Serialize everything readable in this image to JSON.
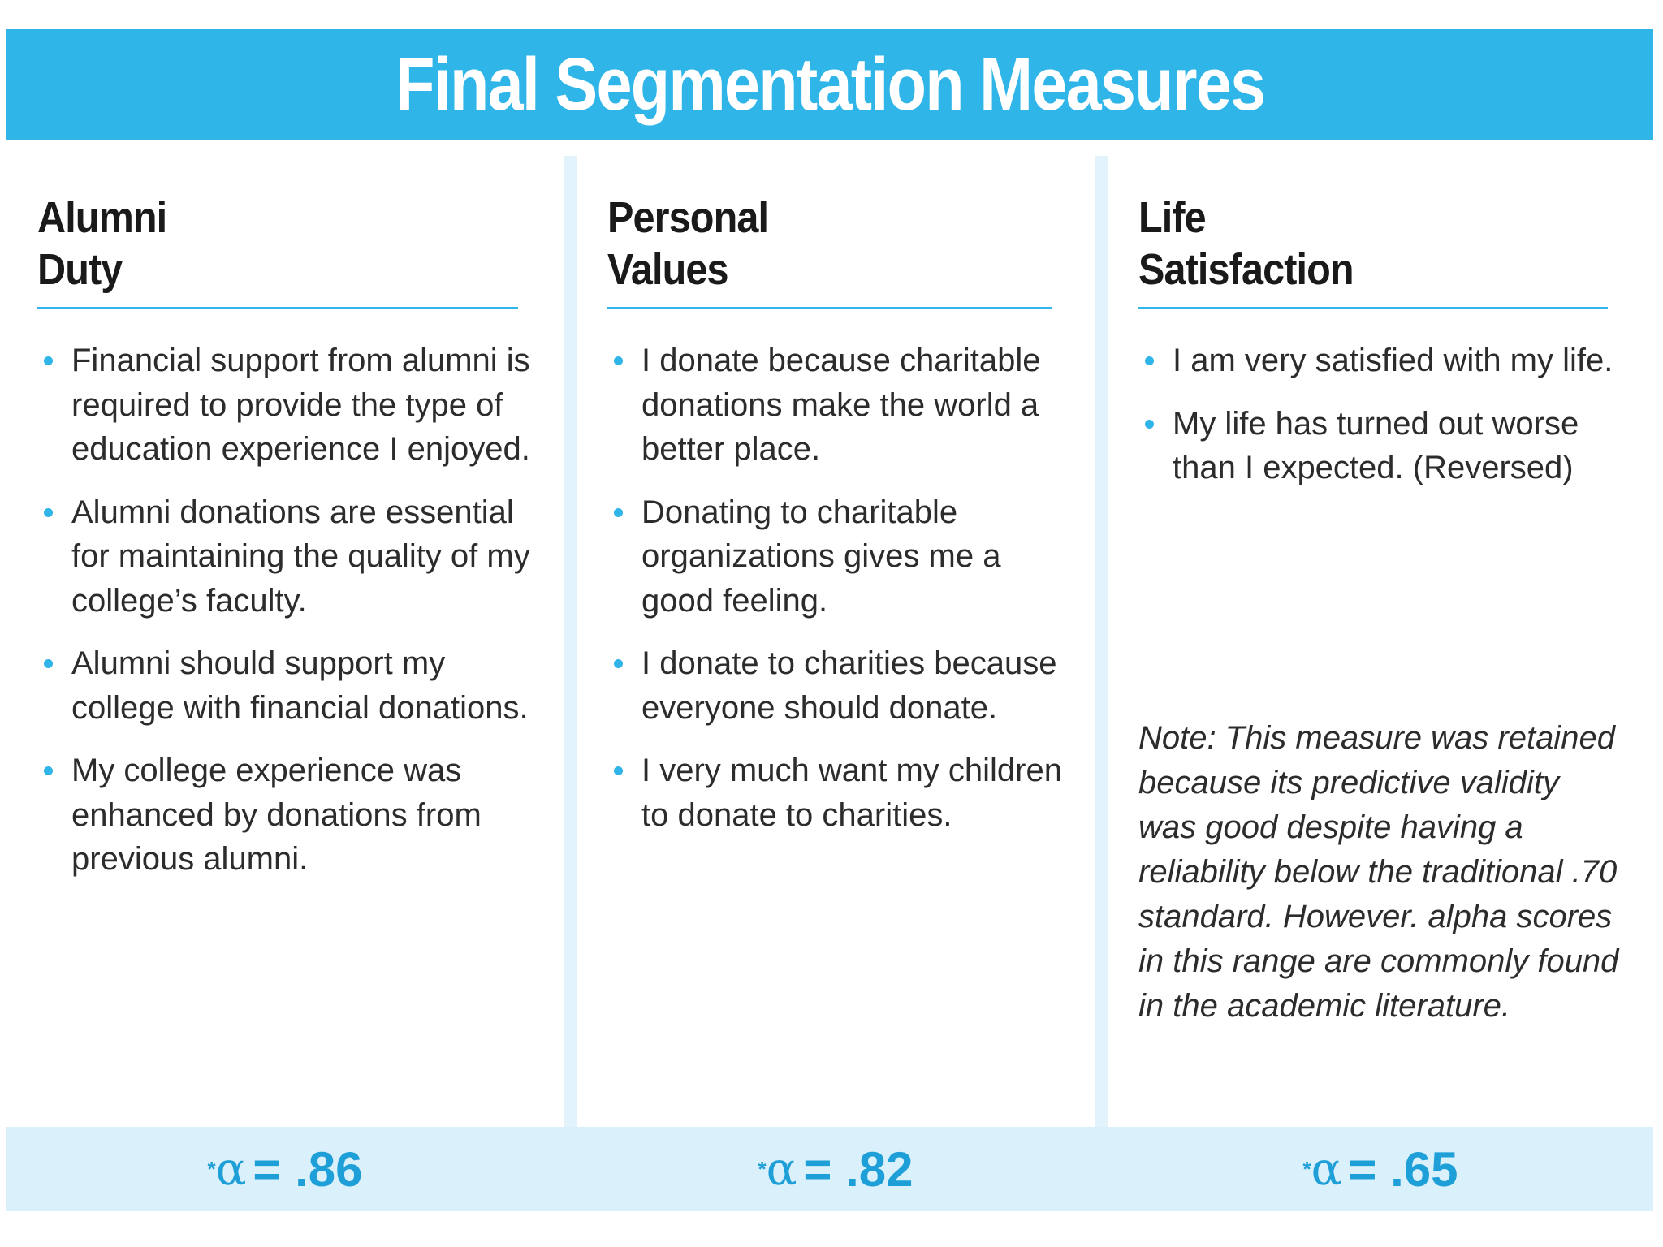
{
  "title": "Final Segmentation Measures",
  "columns": [
    {
      "heading_line1": "Alumni",
      "heading_line2": "Duty",
      "items": [
        "Financial support from alumni is required to provide the type of education experience I enjoyed.",
        "Alumni donations are essential for maintaining the quality of my college’s faculty.",
        "Alumni should support my college with financial donations.",
        "My college experience was enhanced by donations from previous alumni."
      ],
      "alpha_mark": "*",
      "alpha_symbol": "α",
      "alpha_value": "= .86"
    },
    {
      "heading_line1": "Personal",
      "heading_line2": "Values",
      "items": [
        "I donate because charitable donations make the world a better place.",
        "Donating to charitable organizations gives me a good feeling.",
        "I donate to charities because everyone should donate.",
        "I very much want my children to donate to charities."
      ],
      "alpha_mark": "*",
      "alpha_symbol": "α",
      "alpha_value": "= .82"
    },
    {
      "heading_line1": "Life",
      "heading_line2": "Satisfaction",
      "items": [
        "I am very satisfied with my life.",
        "My life has turned out worse than I expected. (Reversed)"
      ],
      "note": "Note: This measure was retained because its predictive validity was good despite having a reliability below the traditional .70 standard.  However. alpha scores in this range are commonly found in the academic literature.",
      "alpha_mark": "*",
      "alpha_symbol": "α",
      "alpha_value": "= .65"
    }
  ],
  "colors": {
    "accent": "#2fb5e8",
    "alpha_text": "#1e9fd8",
    "footer_bg": "#daf0fa"
  }
}
